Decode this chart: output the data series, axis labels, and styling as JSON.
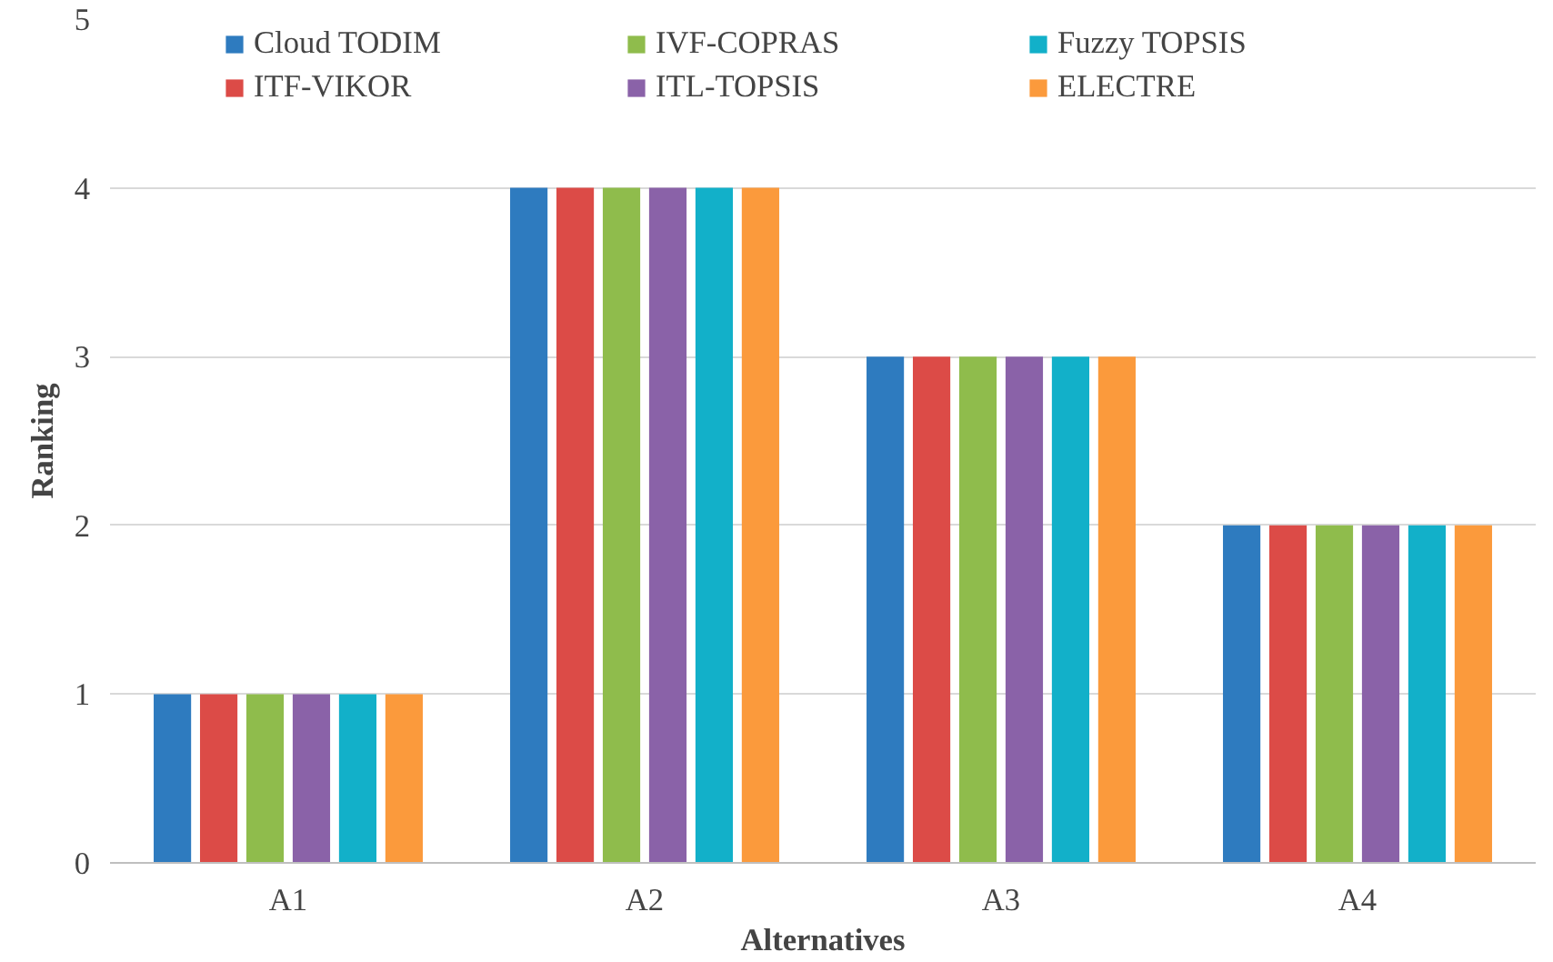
{
  "chart_data": {
    "type": "bar",
    "xlabel": "Alternatives",
    "ylabel": "Ranking",
    "categories": [
      "A1",
      "A2",
      "A3",
      "A4"
    ],
    "series": [
      {
        "name": "Cloud TODIM",
        "color": "#2e7bbf",
        "values": [
          1,
          4,
          3,
          2
        ]
      },
      {
        "name": "ITF-VIKOR",
        "color": "#dc4b47",
        "values": [
          1,
          4,
          3,
          2
        ]
      },
      {
        "name": "IVF-COPRAS",
        "color": "#8fbc4c",
        "values": [
          1,
          4,
          3,
          2
        ]
      },
      {
        "name": "ITL-TOPSIS",
        "color": "#8a62a8",
        "values": [
          1,
          4,
          3,
          2
        ]
      },
      {
        "name": "Fuzzy TOPSIS",
        "color": "#12b0c9",
        "values": [
          1,
          4,
          3,
          2
        ]
      },
      {
        "name": "ELECTRE",
        "color": "#fb9a3c",
        "values": [
          1,
          4,
          3,
          2
        ]
      }
    ],
    "ylim": [
      0,
      5
    ],
    "yticks": [
      0,
      1,
      2,
      3,
      4,
      5
    ],
    "grid": "y",
    "legend": "top"
  }
}
